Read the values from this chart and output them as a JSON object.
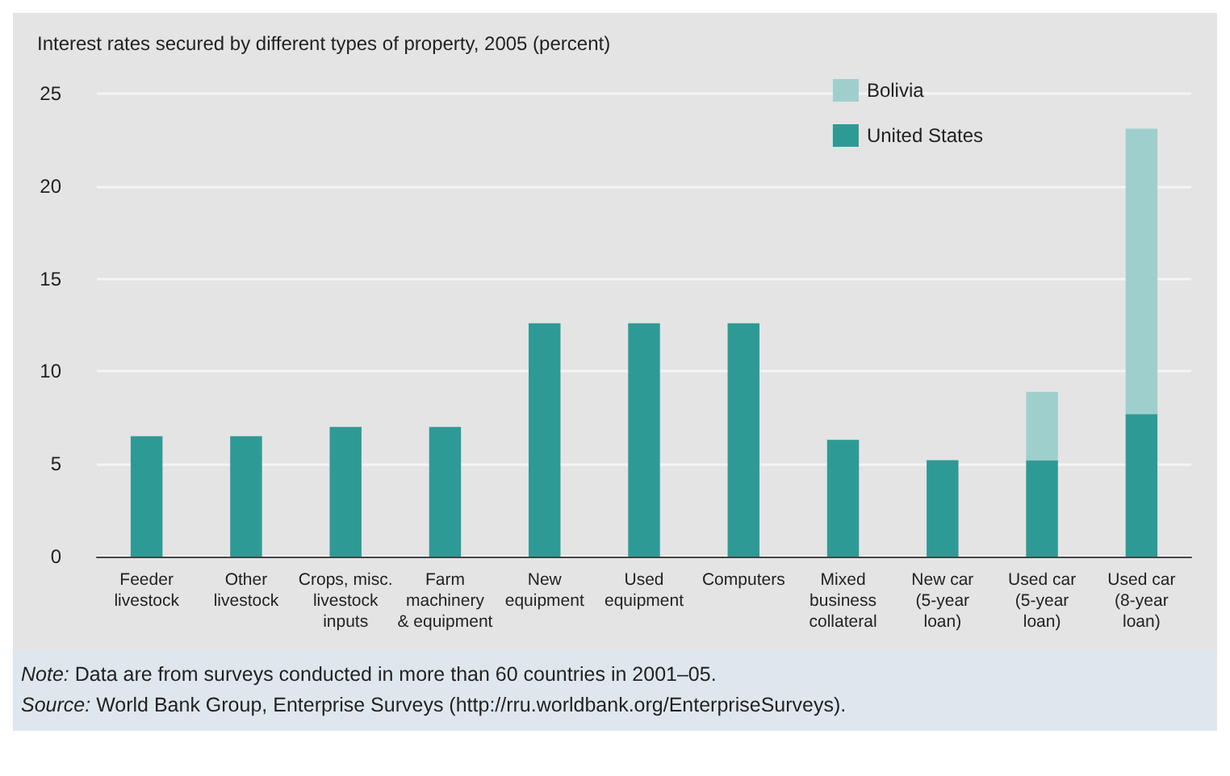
{
  "chart_data": {
    "type": "bar",
    "title": "Interest rates secured by different types of property, 2005 (percent)",
    "categories": [
      "Feeder\nlivestock",
      "Other\nlivestock",
      "Crops, misc.\nlivestock\ninputs",
      "Farm\nmachinery\n& equipment",
      "New\nequipment",
      "Used\nequipment",
      "Computers",
      "Mixed\nbusiness\ncollateral",
      "New car\n(5-year\nloan)",
      "Used car\n(5-year\nloan)",
      "Used car\n(8-year\nloan)"
    ],
    "series": [
      {
        "name": "United States",
        "color": "#2e9a96",
        "values": [
          6.5,
          6.5,
          7.0,
          7.0,
          12.6,
          12.6,
          12.6,
          6.3,
          5.2,
          5.2,
          7.7
        ]
      },
      {
        "name": "Bolivia",
        "color": "#9fcfcc",
        "values": [
          0,
          0,
          0,
          0,
          0,
          0,
          0,
          0,
          0,
          3.7,
          15.4
        ]
      }
    ],
    "stacked": true,
    "ylim": [
      0,
      25
    ],
    "yticks": [
      0,
      5,
      10,
      15,
      20,
      25
    ],
    "grid": "y",
    "legend": "top right",
    "annotations": [
      "Note: Data are from surveys conducted in more than 60 countries in 2001–05.",
      "Source: World Bank Group, Enterprise Surveys (http://rru.worldbank.org/EnterpriseSurveys)."
    ]
  }
}
